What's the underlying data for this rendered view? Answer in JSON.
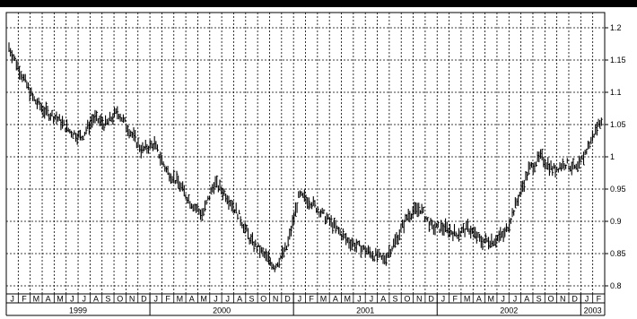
{
  "chart_data": {
    "type": "line",
    "title": "",
    "xlabel": "",
    "ylabel": "",
    "ylim": [
      0.8,
      1.2
    ],
    "y_ticks": [
      0.8,
      0.85,
      0.9,
      0.95,
      1,
      1.05,
      1.1,
      1.15,
      1.2
    ],
    "y_tick_labels": [
      "0.8",
      "0.85",
      "0.9",
      "0.95",
      "1",
      "1.05",
      "1.1",
      "1.15",
      "1.2"
    ],
    "y_axis_side": "right",
    "grid": "dashed",
    "month_labels": [
      "J",
      "F",
      "M",
      "A",
      "M",
      "J",
      "J",
      "A",
      "S",
      "O",
      "N",
      "D",
      "J",
      "F",
      "M",
      "A",
      "M",
      "J",
      "J",
      "A",
      "S",
      "O",
      "N",
      "D",
      "J",
      "F",
      "M",
      "A",
      "M",
      "J",
      "J",
      "A",
      "S",
      "O",
      "N",
      "D",
      "J",
      "F",
      "M",
      "A",
      "M",
      "J",
      "J",
      "A",
      "S",
      "O",
      "N",
      "D",
      "J",
      "F"
    ],
    "years": [
      {
        "label": "1999",
        "start_month": 0,
        "months": 12
      },
      {
        "label": "2000",
        "start_month": 12,
        "months": 12
      },
      {
        "label": "2001",
        "start_month": 24,
        "months": 12
      },
      {
        "label": "2002",
        "start_month": 36,
        "months": 12
      },
      {
        "label": "2003",
        "start_month": 48,
        "months": 2
      }
    ],
    "series": [
      {
        "style": "ohlc-bars",
        "x": [
          "1999-01",
          "1999-02",
          "1999-03",
          "1999-04",
          "1999-05",
          "1999-06",
          "1999-07",
          "1999-08",
          "1999-09",
          "1999-10",
          "1999-11",
          "1999-12",
          "2000-01",
          "2000-02",
          "2000-03",
          "2000-04",
          "2000-05",
          "2000-06",
          "2000-07",
          "2000-08",
          "2000-09",
          "2000-10",
          "2000-11",
          "2000-12",
          "2001-01",
          "2001-02",
          "2001-03",
          "2001-04",
          "2001-05",
          "2001-06",
          "2001-07",
          "2001-08",
          "2001-09",
          "2001-10",
          "2001-11",
          "2001-12",
          "2002-01",
          "2002-02",
          "2002-03",
          "2002-04",
          "2002-05",
          "2002-06",
          "2002-07",
          "2002-08",
          "2002-09",
          "2002-10",
          "2002-11",
          "2002-12",
          "2003-01",
          "2003-02"
        ],
        "values": [
          1.17,
          1.13,
          1.09,
          1.07,
          1.06,
          1.04,
          1.03,
          1.06,
          1.05,
          1.07,
          1.04,
          1.01,
          1.02,
          0.98,
          0.96,
          0.93,
          0.91,
          0.96,
          0.94,
          0.91,
          0.87,
          0.85,
          0.83,
          0.86,
          0.94,
          0.93,
          0.91,
          0.89,
          0.87,
          0.86,
          0.85,
          0.84,
          0.87,
          0.91,
          0.92,
          0.89,
          0.89,
          0.88,
          0.89,
          0.87,
          0.87,
          0.88,
          0.93,
          0.98,
          1.0,
          0.98,
          0.99,
          0.98,
          1.02,
          1.06
        ]
      }
    ]
  }
}
